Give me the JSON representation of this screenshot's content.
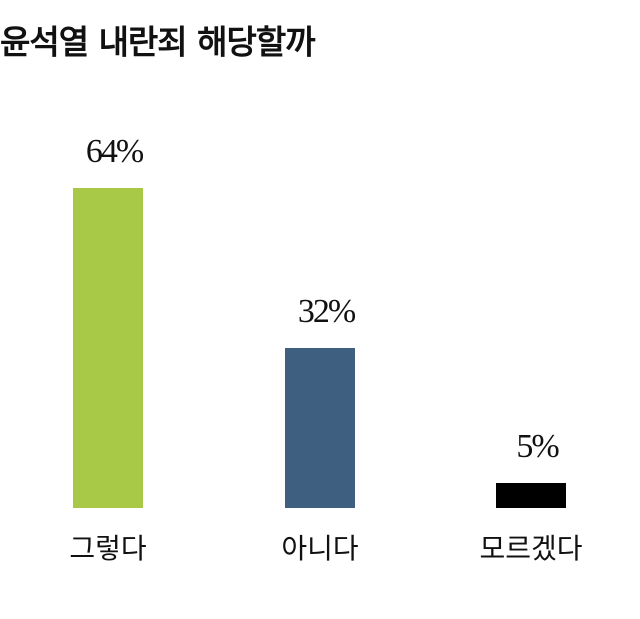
{
  "chart_data": {
    "type": "bar",
    "title": "윤석열 내란죄 해당할까",
    "categories": [
      "그렇다",
      "아니다",
      "모르겠다"
    ],
    "values": [
      64,
      32,
      5
    ],
    "value_labels": [
      "64%",
      "32%",
      "5%"
    ],
    "colors": [
      "#a8c947",
      "#3f5f80",
      "#000000"
    ]
  }
}
